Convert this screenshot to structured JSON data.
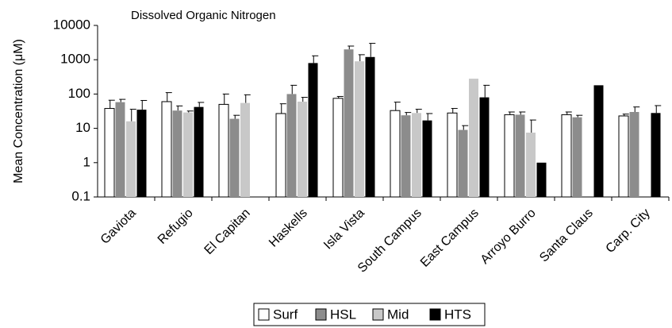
{
  "chart_data": {
    "type": "bar",
    "title": "Dissolved Organic Nitrogen",
    "y_label": "Mean Concentration (μM)",
    "categories": [
      "Gaviota",
      "Refugio",
      "El  Capitan",
      "Haskells",
      "Isla Vista",
      "South Campus",
      "East Campus",
      "Arroyo Burro",
      "Santa Claus",
      "Carp. City"
    ],
    "series": [
      {
        "name": "Surf",
        "color": "#ffffff",
        "values": [
          38,
          60,
          50,
          27,
          75,
          33,
          28,
          25,
          25,
          23
        ],
        "errors": [
          28,
          50,
          50,
          25,
          10,
          25,
          10,
          5,
          5,
          3
        ]
      },
      {
        "name": "HSL",
        "color": "#8c8c8c",
        "values": [
          58,
          33,
          19,
          100,
          2000,
          24,
          9,
          25,
          21,
          30
        ],
        "errors": [
          12,
          12,
          5,
          80,
          500,
          5,
          3,
          5,
          3,
          12
        ]
      },
      {
        "name": "Mid",
        "color": "#c8c8c8",
        "values": [
          16,
          29,
          55,
          60,
          900,
          28,
          280,
          7.5,
          null,
          null
        ],
        "errors": [
          20,
          3,
          40,
          20,
          500,
          8,
          null,
          10,
          null,
          null
        ]
      },
      {
        "name": "HTS",
        "color": "#000000",
        "values": [
          35,
          42,
          null,
          800,
          1200,
          17,
          80,
          1,
          180,
          28
        ],
        "errors": [
          30,
          15,
          null,
          500,
          1800,
          10,
          100,
          null,
          null,
          18
        ]
      }
    ],
    "log_scale": true,
    "ylim": [
      0.1,
      10000
    ],
    "yticks": [
      0.1,
      1,
      10,
      100,
      1000,
      10000
    ],
    "legend": "bottom"
  }
}
